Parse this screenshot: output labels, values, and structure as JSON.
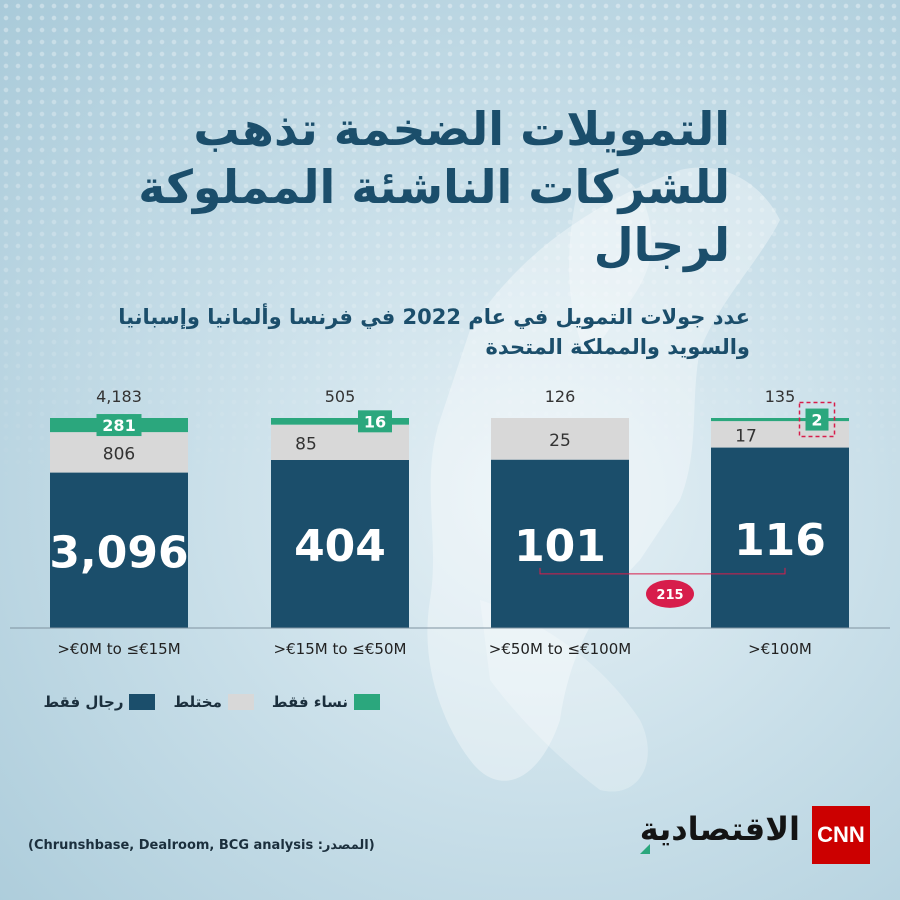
{
  "title": "التمويلات الضخمة تذهب للشركات الناشئة المملوكة لرجال",
  "chart_data": {
    "type": "bar",
    "title": "عدد جولات التمويل في عام 2022 في فرنسا وألمانيا وإسبانيا والسويد والمملكة المتحدة",
    "categories": [
      ">€0M to ≤€15M",
      ">€15M to ≤€50M",
      ">€50M to ≤€100M",
      ">€100M"
    ],
    "totals": [
      "4,183",
      "505",
      "126",
      "135"
    ],
    "series": [
      {
        "name": "رجال فقط",
        "color": "#1b4e6b",
        "values": [
          3096,
          404,
          101,
          116
        ],
        "labels": [
          "3,096",
          "404",
          "101",
          "116"
        ]
      },
      {
        "name": "مختلط",
        "color": "#d8d8d8",
        "values": [
          806,
          85,
          25,
          17
        ],
        "labels": [
          "806",
          "85",
          "25",
          "17"
        ]
      },
      {
        "name": "نساء فقط",
        "color": "#2ba77d",
        "values": [
          281,
          16,
          0,
          2
        ],
        "labels": [
          "281",
          "16",
          "",
          "2"
        ]
      }
    ],
    "stacked": true,
    "normalized": true,
    "annotation": {
      "text": "215",
      "spans_categories": [
        2,
        3
      ],
      "color": "#d71d4b"
    },
    "legend_position": "bottom-left"
  },
  "source": "(المصدر: Chrunshbase, Dealroom, BCG analysis)",
  "logo": {
    "text": "الاقتصادية",
    "mark": "CNN"
  }
}
